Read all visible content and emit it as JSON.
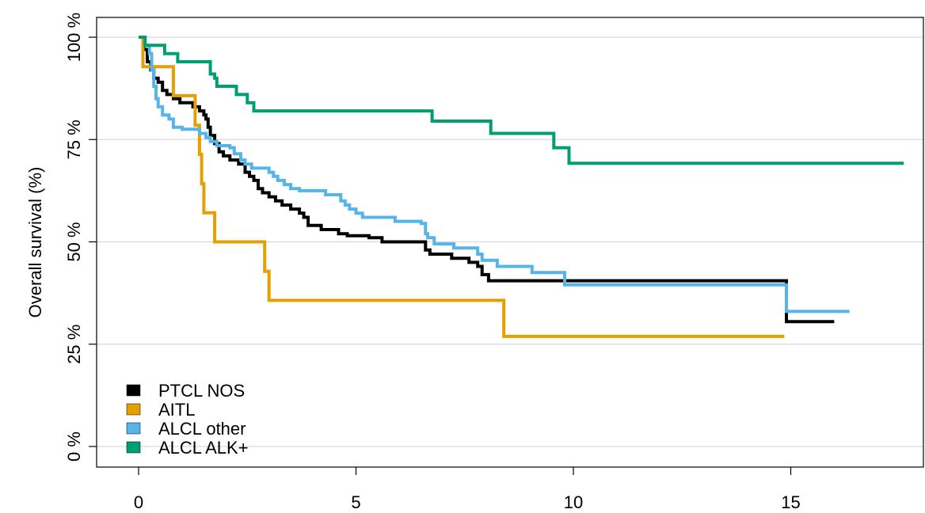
{
  "chart_data": {
    "type": "line",
    "ylabel": "Overall survival (%)",
    "xlabel": "",
    "xlim": [
      0,
      18
    ],
    "ylim": [
      0,
      100
    ],
    "x_ticks": [
      0,
      5,
      10,
      15
    ],
    "x_tick_labels": [
      "0",
      "5",
      "10",
      "15"
    ],
    "y_ticks": [
      0,
      25,
      50,
      75,
      100
    ],
    "y_tick_labels": [
      "0 %",
      "25 %",
      "50 %",
      "75 %",
      "100 %"
    ],
    "grid": "horizontal",
    "legend_position": "bottom-left",
    "series": [
      {
        "name": "PTCL NOS",
        "color": "#000000",
        "points": [
          [
            0,
            100
          ],
          [
            0.12,
            97
          ],
          [
            0.2,
            94
          ],
          [
            0.28,
            92
          ],
          [
            0.35,
            90
          ],
          [
            0.45,
            89
          ],
          [
            0.55,
            87
          ],
          [
            0.65,
            86
          ],
          [
            0.8,
            85
          ],
          [
            0.95,
            84
          ],
          [
            1.1,
            84
          ],
          [
            1.25,
            83
          ],
          [
            1.4,
            82
          ],
          [
            1.5,
            81
          ],
          [
            1.55,
            80
          ],
          [
            1.6,
            78
          ],
          [
            1.65,
            76
          ],
          [
            1.75,
            74
          ],
          [
            1.85,
            72
          ],
          [
            1.95,
            71
          ],
          [
            2.1,
            70
          ],
          [
            2.3,
            69
          ],
          [
            2.45,
            67
          ],
          [
            2.55,
            66
          ],
          [
            2.65,
            65
          ],
          [
            2.75,
            63
          ],
          [
            2.85,
            62
          ],
          [
            3.0,
            61
          ],
          [
            3.15,
            60
          ],
          [
            3.3,
            59
          ],
          [
            3.5,
            58
          ],
          [
            3.7,
            57
          ],
          [
            3.8,
            56
          ],
          [
            3.9,
            54
          ],
          [
            4.0,
            54
          ],
          [
            4.2,
            53
          ],
          [
            4.5,
            53
          ],
          [
            4.6,
            52
          ],
          [
            4.8,
            51.5
          ],
          [
            5.0,
            51.5
          ],
          [
            5.3,
            51
          ],
          [
            5.5,
            51
          ],
          [
            5.6,
            50
          ],
          [
            6.5,
            50
          ],
          [
            6.6,
            48
          ],
          [
            6.7,
            47
          ],
          [
            7.0,
            47
          ],
          [
            7.2,
            46
          ],
          [
            7.6,
            45
          ],
          [
            7.8,
            44
          ],
          [
            7.9,
            42
          ],
          [
            8.05,
            40.5
          ],
          [
            14.85,
            40.5
          ],
          [
            14.9,
            30.5
          ],
          [
            16.0,
            30.5
          ]
        ]
      },
      {
        "name": "AITL",
        "color": "#E69F00",
        "points": [
          [
            0,
            100
          ],
          [
            0.1,
            92.8
          ],
          [
            0.75,
            92.8
          ],
          [
            0.8,
            85.7
          ],
          [
            1.2,
            85.7
          ],
          [
            1.3,
            78.5
          ],
          [
            1.4,
            71.4
          ],
          [
            1.45,
            64.2
          ],
          [
            1.5,
            57.1
          ],
          [
            1.75,
            50
          ],
          [
            2.85,
            50
          ],
          [
            2.9,
            42.8
          ],
          [
            3.0,
            35.7
          ],
          [
            8.35,
            35.7
          ],
          [
            8.4,
            26.9
          ],
          [
            14.85,
            26.9
          ]
        ]
      },
      {
        "name": "ALCL other",
        "color": "#56B4E9",
        "points": [
          [
            0,
            100
          ],
          [
            0.15,
            98
          ],
          [
            0.25,
            96
          ],
          [
            0.3,
            92
          ],
          [
            0.35,
            88
          ],
          [
            0.4,
            85
          ],
          [
            0.45,
            83
          ],
          [
            0.55,
            81
          ],
          [
            0.7,
            80
          ],
          [
            0.8,
            78
          ],
          [
            1.0,
            77.5
          ],
          [
            1.25,
            77.5
          ],
          [
            1.4,
            76.5
          ],
          [
            1.55,
            75.5
          ],
          [
            1.65,
            74.5
          ],
          [
            1.8,
            73.5
          ],
          [
            2.1,
            73
          ],
          [
            2.2,
            71.5
          ],
          [
            2.35,
            70
          ],
          [
            2.45,
            69
          ],
          [
            2.6,
            68
          ],
          [
            3.0,
            67
          ],
          [
            3.1,
            66
          ],
          [
            3.2,
            65
          ],
          [
            3.35,
            64
          ],
          [
            3.5,
            63
          ],
          [
            3.7,
            62.5
          ],
          [
            4.1,
            62.5
          ],
          [
            4.3,
            61.5
          ],
          [
            4.6,
            61.5
          ],
          [
            4.65,
            60
          ],
          [
            4.75,
            59
          ],
          [
            4.85,
            58
          ],
          [
            5.0,
            57
          ],
          [
            5.15,
            56
          ],
          [
            5.8,
            56
          ],
          [
            5.9,
            55
          ],
          [
            6.5,
            54.5
          ],
          [
            6.6,
            52
          ],
          [
            6.65,
            51
          ],
          [
            6.8,
            49.5
          ],
          [
            7.2,
            49.5
          ],
          [
            7.25,
            48.5
          ],
          [
            7.7,
            48.5
          ],
          [
            7.8,
            47
          ],
          [
            7.9,
            45.5
          ],
          [
            8.15,
            45.5
          ],
          [
            8.25,
            44
          ],
          [
            9.0,
            44
          ],
          [
            9.05,
            42.5
          ],
          [
            9.75,
            42.5
          ],
          [
            9.8,
            39.5
          ],
          [
            14.85,
            39.5
          ],
          [
            14.9,
            33
          ],
          [
            16.35,
            33
          ]
        ]
      },
      {
        "name": "ALCL ALK+",
        "color": "#009E73",
        "points": [
          [
            0,
            100
          ],
          [
            0.15,
            98
          ],
          [
            0.55,
            98
          ],
          [
            0.6,
            96
          ],
          [
            0.8,
            96
          ],
          [
            0.9,
            94
          ],
          [
            1.6,
            94
          ],
          [
            1.65,
            91
          ],
          [
            1.75,
            90
          ],
          [
            1.8,
            88
          ],
          [
            2.2,
            88
          ],
          [
            2.25,
            86
          ],
          [
            2.45,
            86
          ],
          [
            2.5,
            84
          ],
          [
            2.6,
            84
          ],
          [
            2.65,
            82
          ],
          [
            6.7,
            82
          ],
          [
            6.75,
            79.5
          ],
          [
            8.0,
            79.5
          ],
          [
            8.1,
            76.5
          ],
          [
            9.5,
            76.5
          ],
          [
            9.55,
            73
          ],
          [
            9.85,
            73
          ],
          [
            9.9,
            69.2
          ],
          [
            17.6,
            69.2
          ]
        ]
      }
    ]
  }
}
